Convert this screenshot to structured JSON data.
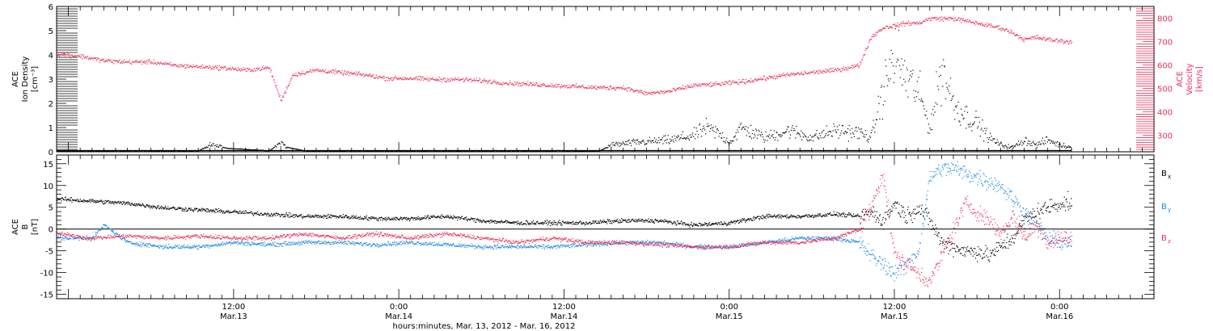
{
  "chart_data": [
    {
      "panel": "top",
      "type": "scatter",
      "ylabel_lines": [
        "ACE",
        "Ion Density",
        "[cm⁻³]"
      ],
      "y2label_lines": [
        "ACE",
        "Velocity",
        "[km/s]"
      ],
      "ylim": [
        0,
        6
      ],
      "yticks": [
        0,
        1,
        2,
        3,
        4,
        5,
        6
      ],
      "y2lim": [
        230,
        850
      ],
      "y2ticks": [
        300,
        400,
        500,
        600,
        700,
        800
      ],
      "series": [
        {
          "color": "#000000",
          "axis": "left",
          "points": [
            [
              0,
              0.05
            ],
            [
              12,
              0.05
            ],
            [
              13,
              0.3
            ],
            [
              14.5,
              0.15
            ],
            [
              18,
              0.05
            ],
            [
              19,
              0.4
            ],
            [
              19.5,
              0.2
            ],
            [
              21,
              0.05
            ],
            [
              30,
              0.05
            ],
            [
              36,
              0.05
            ],
            [
              40,
              0.05
            ],
            [
              46,
              0.05
            ],
            [
              47,
              0.3
            ],
            [
              49,
              0.4
            ],
            [
              52,
              0.5
            ],
            [
              54,
              0.7
            ],
            [
              55,
              1.0
            ],
            [
              56,
              0.8
            ],
            [
              57,
              0.4
            ],
            [
              58,
              1.0
            ],
            [
              60,
              0.6
            ],
            [
              62,
              0.9
            ],
            [
              64,
              0.6
            ],
            [
              66,
              0.9
            ],
            [
              68,
              0.8
            ],
            [
              69,
              0.6
            ],
            [
              70,
              2.5
            ],
            [
              71,
              4.0
            ],
            [
              72,
              3.0
            ],
            [
              73,
              2.5
            ],
            [
              74,
              1.0
            ],
            [
              75,
              3.5
            ],
            [
              76,
              2.0
            ],
            [
              77,
              1.5
            ],
            [
              78,
              1.2
            ],
            [
              79,
              0.6
            ],
            [
              80,
              0.3
            ],
            [
              81,
              0.2
            ],
            [
              82,
              0.5
            ],
            [
              83,
              0.3
            ],
            [
              84,
              0.5
            ],
            [
              85,
              0.3
            ],
            [
              86,
              0.2
            ]
          ]
        },
        {
          "color": "#e8305a",
          "axis": "right",
          "points": [
            [
              0,
              650
            ],
            [
              2,
              640
            ],
            [
              4,
              620
            ],
            [
              6,
              615
            ],
            [
              8,
              615
            ],
            [
              10,
              600
            ],
            [
              12,
              595
            ],
            [
              14,
              590
            ],
            [
              16,
              580
            ],
            [
              18,
              590
            ],
            [
              19,
              450
            ],
            [
              20,
              560
            ],
            [
              22,
              580
            ],
            [
              24,
              570
            ],
            [
              26,
              560
            ],
            [
              28,
              545
            ],
            [
              30,
              545
            ],
            [
              32,
              540
            ],
            [
              34,
              540
            ],
            [
              36,
              535
            ],
            [
              38,
              525
            ],
            [
              40,
              520
            ],
            [
              42,
              515
            ],
            [
              44,
              510
            ],
            [
              46,
              505
            ],
            [
              48,
              505
            ],
            [
              50,
              480
            ],
            [
              52,
              490
            ],
            [
              54,
              515
            ],
            [
              56,
              520
            ],
            [
              58,
              530
            ],
            [
              60,
              545
            ],
            [
              62,
              560
            ],
            [
              64,
              570
            ],
            [
              66,
              580
            ],
            [
              68,
              600
            ],
            [
              69,
              720
            ],
            [
              70,
              760
            ],
            [
              71,
              770
            ],
            [
              72,
              780
            ],
            [
              73,
              780
            ],
            [
              74,
              800
            ],
            [
              75,
              800
            ],
            [
              76,
              800
            ],
            [
              77,
              790
            ],
            [
              78,
              780
            ],
            [
              79,
              770
            ],
            [
              80,
              760
            ],
            [
              81,
              740
            ],
            [
              82,
              710
            ],
            [
              83,
              720
            ],
            [
              84,
              710
            ],
            [
              85,
              705
            ],
            [
              86,
              700
            ]
          ]
        }
      ]
    },
    {
      "panel": "bottom",
      "type": "scatter",
      "ylabel_lines": [
        "ACE",
        "B",
        "[nT]"
      ],
      "ylim": [
        -16,
        17
      ],
      "yticks": [
        -15,
        -10,
        -5,
        0,
        5,
        10,
        15
      ],
      "xlabel": "hours:minutes, Mar. 13, 2012 - Mar. 16, 2012",
      "xlim": [
        0,
        93
      ],
      "xticks": [
        {
          "h": 15,
          "time": "12:00",
          "date": "Mar.13"
        },
        {
          "h": 29,
          "time": "0:00",
          "date": "Mar.14"
        },
        {
          "h": 43,
          "time": "12:00",
          "date": "Mar.14"
        },
        {
          "h": 57,
          "time": "0:00",
          "date": "Mar.15"
        },
        {
          "h": 71,
          "time": "12:00",
          "date": "Mar.15"
        },
        {
          "h": 85,
          "time": "0:00",
          "date": "Mar.16"
        }
      ],
      "series": [
        {
          "label": "B",
          "sub": "x",
          "color": "#000000",
          "points": [
            [
              0,
              7
            ],
            [
              3,
              6.5
            ],
            [
              6,
              6
            ],
            [
              9,
              5
            ],
            [
              12,
              4.5
            ],
            [
              15,
              4
            ],
            [
              18,
              3.5
            ],
            [
              21,
              3
            ],
            [
              24,
              3
            ],
            [
              27,
              2.5
            ],
            [
              30,
              2.5
            ],
            [
              33,
              3
            ],
            [
              36,
              2
            ],
            [
              39,
              1.5
            ],
            [
              42,
              1.5
            ],
            [
              45,
              1.5
            ],
            [
              48,
              2
            ],
            [
              51,
              2
            ],
            [
              54,
              1
            ],
            [
              57,
              1.5
            ],
            [
              60,
              3
            ],
            [
              63,
              3
            ],
            [
              66,
              3.5
            ],
            [
              68,
              3
            ],
            [
              69,
              4
            ],
            [
              70,
              2
            ],
            [
              71,
              6
            ],
            [
              72,
              3
            ],
            [
              73,
              5
            ],
            [
              74,
              2
            ],
            [
              75,
              -3
            ],
            [
              76,
              -4
            ],
            [
              77,
              -5
            ],
            [
              78,
              -5
            ],
            [
              79,
              -6
            ],
            [
              80,
              -4
            ],
            [
              81,
              -2
            ],
            [
              82,
              2
            ],
            [
              83,
              4
            ],
            [
              84,
              5
            ],
            [
              85,
              6
            ]
          ]
        },
        {
          "label": "B",
          "sub": "y",
          "color": "#1e88e5",
          "points": [
            [
              0,
              -2
            ],
            [
              3,
              -2
            ],
            [
              4,
              1
            ],
            [
              6,
              -3
            ],
            [
              9,
              -4
            ],
            [
              12,
              -4
            ],
            [
              15,
              -3
            ],
            [
              18,
              -3.5
            ],
            [
              21,
              -3
            ],
            [
              24,
              -3
            ],
            [
              27,
              -3.5
            ],
            [
              30,
              -3
            ],
            [
              33,
              -3.5
            ],
            [
              36,
              -4
            ],
            [
              39,
              -4
            ],
            [
              42,
              -4
            ],
            [
              45,
              -3.5
            ],
            [
              48,
              -3
            ],
            [
              51,
              -3
            ],
            [
              54,
              -4
            ],
            [
              57,
              -4
            ],
            [
              60,
              -3
            ],
            [
              63,
              -2
            ],
            [
              66,
              -2
            ],
            [
              68,
              -3
            ],
            [
              69,
              -6
            ],
            [
              70,
              -8
            ],
            [
              71,
              -10
            ],
            [
              72,
              -8
            ],
            [
              73,
              -5
            ],
            [
              74,
              12
            ],
            [
              75,
              14
            ],
            [
              76,
              14
            ],
            [
              77,
              13
            ],
            [
              78,
              12
            ],
            [
              79,
              11
            ],
            [
              80,
              10
            ],
            [
              81,
              7
            ],
            [
              82,
              4
            ],
            [
              83,
              1
            ],
            [
              84,
              -2
            ],
            [
              85,
              -3
            ]
          ]
        },
        {
          "label": "B",
          "sub": "z",
          "color": "#e8305a",
          "points": [
            [
              0,
              -1
            ],
            [
              3,
              -2
            ],
            [
              6,
              -1.5
            ],
            [
              9,
              -2
            ],
            [
              12,
              -1.5
            ],
            [
              15,
              -2
            ],
            [
              18,
              -2
            ],
            [
              21,
              -1
            ],
            [
              24,
              -2
            ],
            [
              27,
              -1
            ],
            [
              30,
              -2
            ],
            [
              33,
              -1
            ],
            [
              36,
              -2
            ],
            [
              39,
              -3
            ],
            [
              42,
              -2
            ],
            [
              45,
              -3
            ],
            [
              48,
              -3
            ],
            [
              51,
              -3.5
            ],
            [
              54,
              -4
            ],
            [
              57,
              -4
            ],
            [
              60,
              -3
            ],
            [
              63,
              -3
            ],
            [
              66,
              -2
            ],
            [
              68,
              0
            ],
            [
              69,
              5
            ],
            [
              70,
              13
            ],
            [
              71,
              -6
            ],
            [
              72,
              -8
            ],
            [
              73,
              -10
            ],
            [
              74,
              -12
            ],
            [
              75,
              -6
            ],
            [
              76,
              0
            ],
            [
              77,
              6
            ],
            [
              78,
              4
            ],
            [
              79,
              2
            ],
            [
              80,
              -1
            ],
            [
              81,
              3
            ],
            [
              82,
              -2
            ],
            [
              83,
              1
            ],
            [
              84,
              -3
            ],
            [
              85,
              -2
            ]
          ]
        }
      ]
    }
  ]
}
